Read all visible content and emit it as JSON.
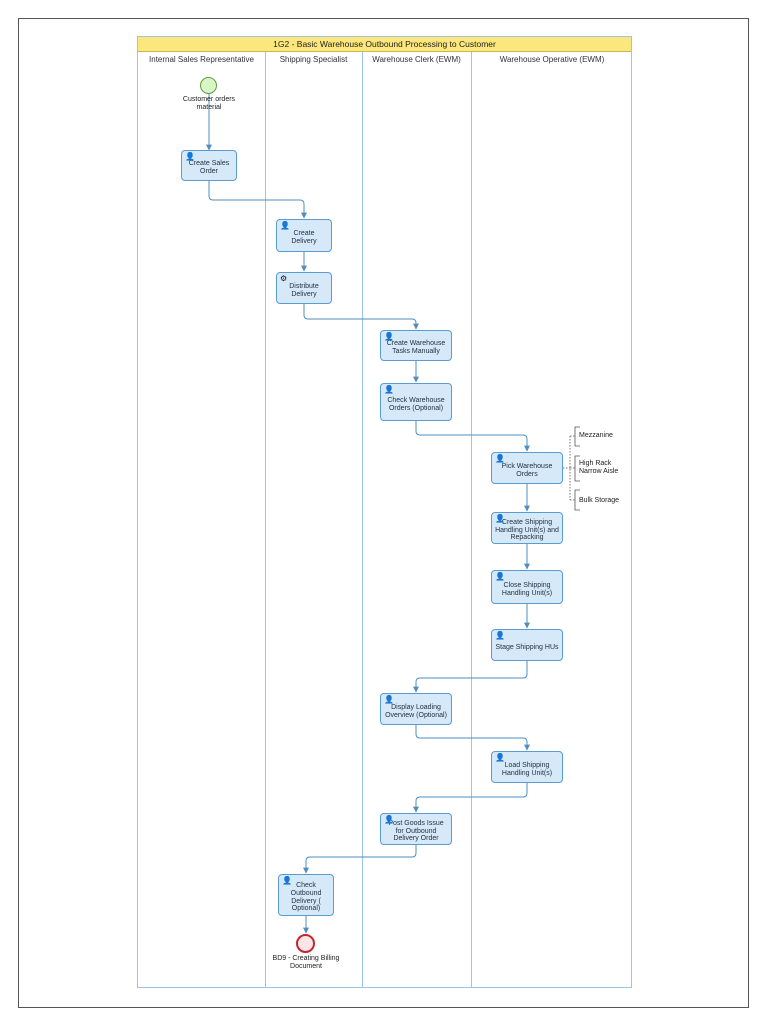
{
  "diagram": {
    "title": "1G2 - Basic Warehouse Outbound Processing to Customer",
    "lanes": [
      "Internal Sales Representative",
      "Shipping Specialist",
      "Warehouse Clerk (EWM)",
      "Warehouse Operative (EWM)"
    ],
    "start_event": "Customer orders material",
    "end_event": "BD9 - Creating Billing Document",
    "tasks": {
      "create_sales_order": "Create Sales Order",
      "create_delivery": "Create Delivery",
      "distribute_delivery": "Distribute Delivery",
      "create_warehouse_tasks": "Create Warehouse Tasks Manually",
      "check_warehouse_orders": "Check Warehouse Orders (Optional)",
      "pick_warehouse_orders": "Pick Warehouse Orders",
      "create_shipping_hu": "Create Shipping Handling Unit(s) and Repacking",
      "close_shipping_hu": "Close Shipping Handling Unit(s)",
      "stage_shipping_hus": "Stage Shipping HUs",
      "display_loading_overview": "Display Loading Overview (Optional)",
      "load_shipping_hu": "Load Shipping Handling Unit(s)",
      "post_goods_issue": "Post Goods Issue for Outbound Delivery Order",
      "check_outbound_delivery": "Check Outbound Delivery ( Optional)"
    },
    "annotations": {
      "mezzanine": "Mezzanine",
      "high_rack": "High Rack Narrow Aisle",
      "bulk_storage": "Bulk Storage"
    },
    "icons": {
      "user_task": "user-icon",
      "service_task": "gear-icon"
    },
    "colors": {
      "lane_border": "#9cc5e3",
      "pool_header": "#fbe77c",
      "task_fill": "#d5e9f8",
      "task_border": "#5b9bd1",
      "flow_line": "#4f8fc0",
      "start_event": "#d9f6c6",
      "end_event": "#c4262e"
    }
  }
}
